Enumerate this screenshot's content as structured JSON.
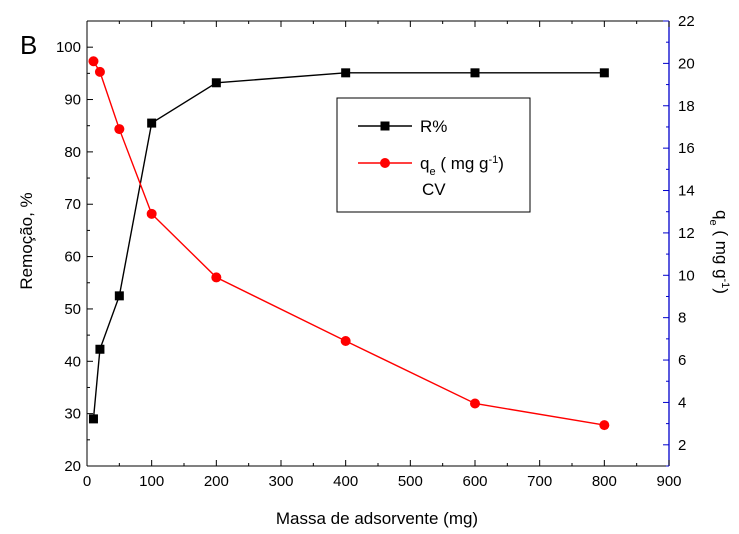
{
  "chart_data": {
    "type": "line",
    "panel_label": "B",
    "xlabel": "Massa de adsorvente (mg)",
    "ylabel_left": "Remoção, %",
    "ylabel_right": "qₑ ( mg g⁻¹)",
    "xlim": [
      0,
      900
    ],
    "ylim_left": [
      20,
      105
    ],
    "ylim_right": [
      1,
      22
    ],
    "x_ticks": [
      0,
      100,
      200,
      300,
      400,
      500,
      600,
      700,
      800,
      900
    ],
    "y_left_ticks": [
      20,
      30,
      40,
      50,
      60,
      70,
      80,
      90,
      100
    ],
    "y_right_ticks": [
      2,
      4,
      6,
      8,
      10,
      12,
      14,
      16,
      18,
      20,
      22
    ],
    "right_axis_color": "#0000cc",
    "grid": false,
    "legend_position": "upper-right",
    "series": [
      {
        "name": "R%",
        "axis": "left",
        "color": "#000000",
        "marker": "square",
        "x": [
          10,
          20,
          50,
          100,
          200,
          400,
          600,
          800
        ],
        "y": [
          29.0,
          42.3,
          52.5,
          85.5,
          93.2,
          95.1,
          95.1,
          95.1
        ]
      },
      {
        "name": "qₑ ( mg g⁻¹)",
        "axis": "right",
        "color": "#ff0000",
        "marker": "circle",
        "x": [
          10,
          20,
          50,
          100,
          200,
          400,
          600,
          800
        ],
        "y": [
          20.1,
          19.6,
          16.9,
          12.9,
          9.9,
          6.9,
          3.95,
          2.93
        ]
      }
    ],
    "legend": {
      "entries": [
        {
          "label": "R%",
          "color": "#000000",
          "marker": "square"
        },
        {
          "label_main": "q",
          "label_sub": "e",
          "label_rest": " ( mg g",
          "label_sup": "-1",
          "label_close": ")",
          "color": "#ff0000",
          "marker": "circle"
        }
      ],
      "extra_line": "CV"
    },
    "right_title_parts": {
      "main": "q",
      "sub": "e",
      "rest": " ( mg g",
      "sup": "-1",
      "close": ")"
    }
  }
}
